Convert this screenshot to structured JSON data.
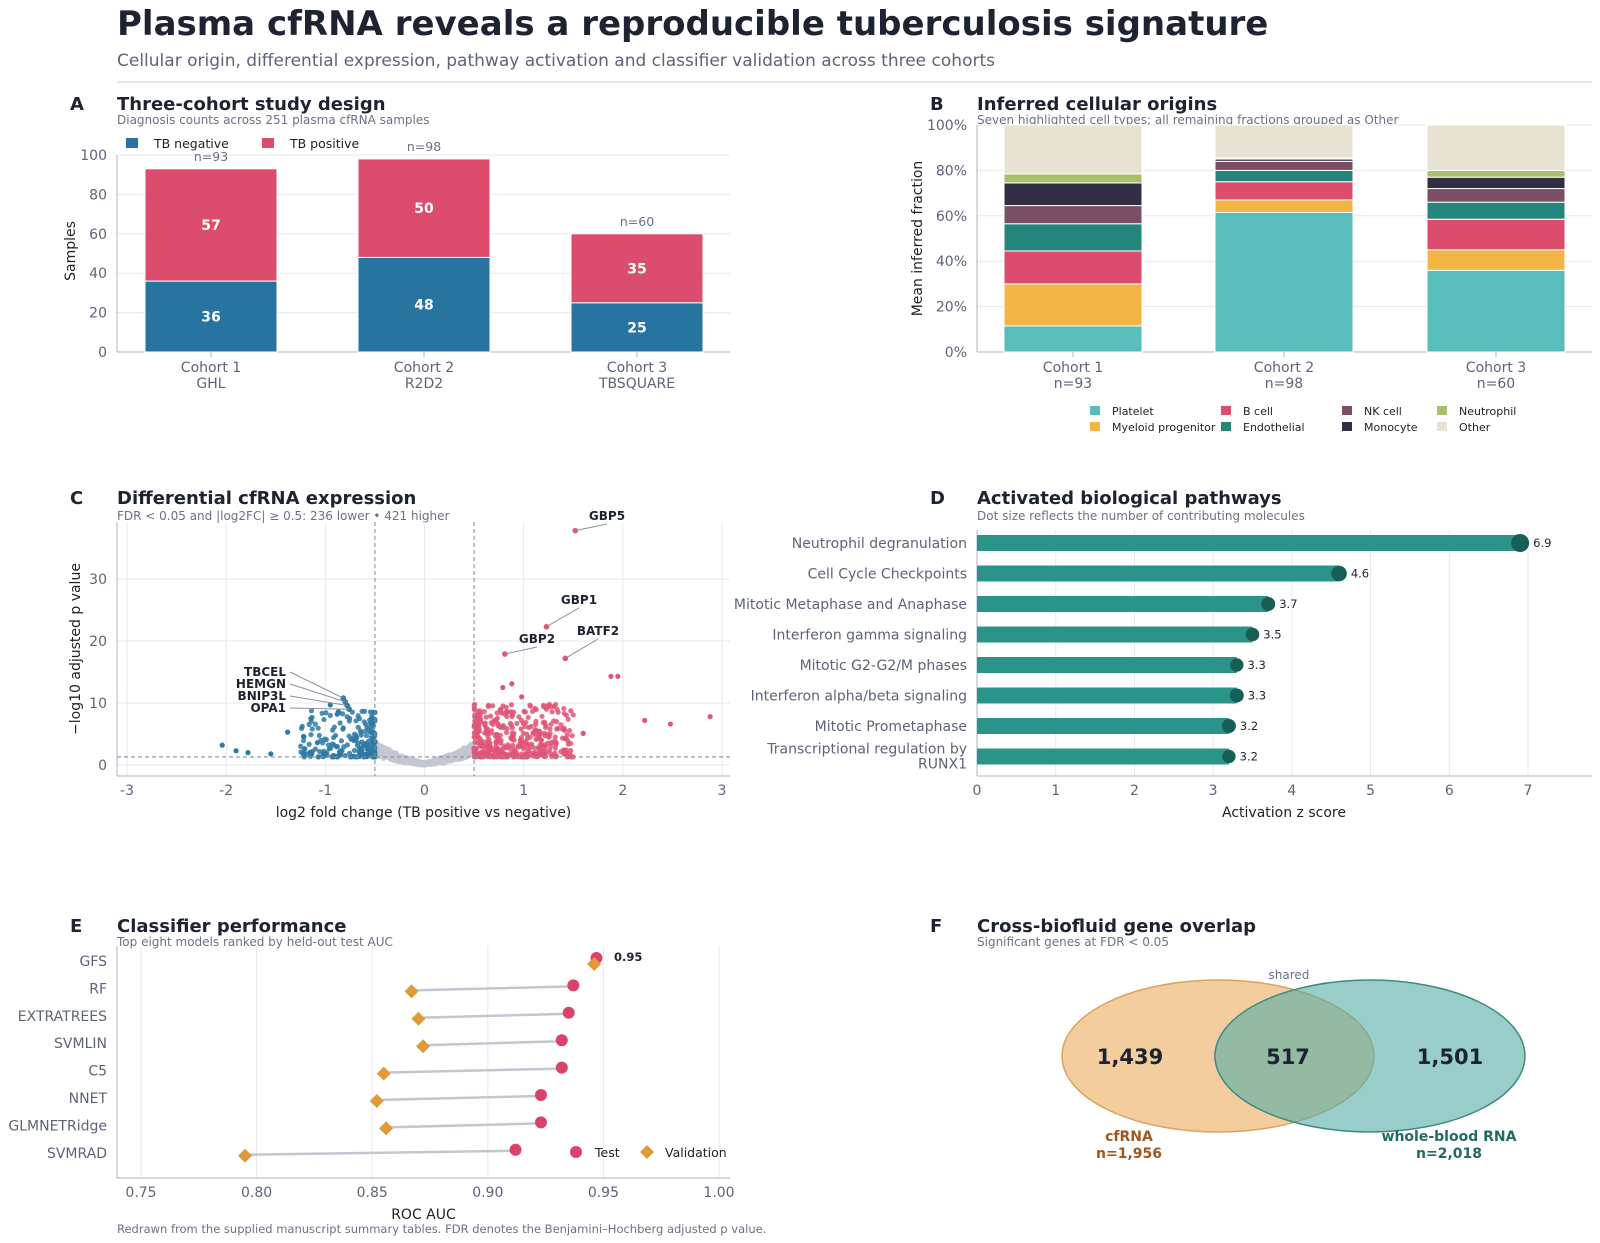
{
  "title": "Plasma cfRNA reveals a reproducible tuberculosis signature",
  "subtitle": "Cellular origin, differential expression, pathway activation and classifier validation across three cohorts",
  "footnote": "Redrawn from the supplied manuscript summary tables. FDR denotes the Benjamini–Hochberg adjusted p value.",
  "colors": {
    "tb_negative": "#2874a0",
    "tb_positive": "#dc4c6c",
    "platelet": "#59bdbb",
    "myeloid_progenitor": "#f2b445",
    "b_cell": "#dc4c6c",
    "endothelial": "#23857c",
    "nk_cell": "#7a4f66",
    "monocyte": "#322f45",
    "neutrophil": "#a8c06a",
    "other": "#e8e2d2",
    "pathway_bar": "#2a948a",
    "pathway_dot": "#175e56",
    "test": "#d9436a",
    "validation": "#e09a3a",
    "cfrna": "#f0c287",
    "whole_blood": "#5aaea8",
    "volcano_down": "#2e7aa6",
    "volcano_up": "#e15577",
    "volcano_ns": "#c2c7d0"
  },
  "panels": {
    "A": {
      "letter": "A",
      "title": "Three-cohort study design",
      "subtitle": "Diagnosis counts across 251 plasma cfRNA samples"
    },
    "B": {
      "letter": "B",
      "title": "Inferred cellular origins",
      "subtitle": "Seven highlighted cell types; all remaining fractions grouped as Other"
    },
    "C": {
      "letter": "C",
      "title": "Differential cfRNA expression",
      "subtitle": "FDR < 0.05 and |log2FC| ≥ 0.5: 236 lower • 421 higher"
    },
    "D": {
      "letter": "D",
      "title": "Activated biological pathways",
      "subtitle": "Dot size reflects the number of contributing molecules"
    },
    "E": {
      "letter": "E",
      "title": "Classifier performance",
      "subtitle": "Top eight models ranked by held-out test AUC"
    },
    "F": {
      "letter": "F",
      "title": "Cross-biofluid gene overlap",
      "subtitle": "Significant genes at FDR < 0.05"
    }
  },
  "chart_data": [
    {
      "panel": "A",
      "type": "bar",
      "stacked": true,
      "categories": [
        "Cohort 1\nGHL",
        "Cohort 2\nR2D2",
        "Cohort 3\nTBSQUARE"
      ],
      "series": [
        {
          "name": "TB negative",
          "values": [
            36,
            48,
            25
          ]
        },
        {
          "name": "TB positive",
          "values": [
            57,
            50,
            35
          ]
        }
      ],
      "totals": [
        "n=93",
        "n=98",
        "n=60"
      ],
      "ylabel": "Samples",
      "ylim": [
        0,
        100
      ],
      "yticks": [
        0,
        20,
        40,
        60,
        80,
        100
      ],
      "legend": "top-left"
    },
    {
      "panel": "B",
      "type": "bar",
      "stacked": true,
      "categories": [
        "Cohort 1\nn=93",
        "Cohort 2\nn=98",
        "Cohort 3\nn=60"
      ],
      "series": [
        {
          "name": "Platelet",
          "values": [
            0.115,
            0.615,
            0.36
          ]
        },
        {
          "name": "Myeloid progenitor",
          "values": [
            0.185,
            0.055,
            0.09
          ]
        },
        {
          "name": "B cell",
          "values": [
            0.145,
            0.08,
            0.135
          ]
        },
        {
          "name": "Endothelial",
          "values": [
            0.12,
            0.05,
            0.075
          ]
        },
        {
          "name": "NK cell",
          "values": [
            0.08,
            0.04,
            0.06
          ]
        },
        {
          "name": "Monocyte",
          "values": [
            0.1,
            0.01,
            0.05
          ]
        },
        {
          "name": "Neutrophil",
          "values": [
            0.04,
            0.005,
            0.03
          ]
        },
        {
          "name": "Other",
          "values": [
            0.215,
            0.145,
            0.2
          ]
        }
      ],
      "ylabel": "Mean inferred fraction",
      "ylim": [
        0,
        1
      ],
      "yticks": [
        "0%",
        "20%",
        "40%",
        "60%",
        "80%",
        "100%"
      ],
      "legend": "bottom"
    },
    {
      "panel": "C",
      "type": "scatter",
      "xlabel": "log2 fold change (TB positive vs negative)",
      "ylabel": "−log10 adjusted p value",
      "xlim": [
        -3.1,
        3.1
      ],
      "ylim": [
        -1.5,
        39
      ],
      "xticks": [
        -3,
        -2,
        -1,
        0,
        1,
        2,
        3
      ],
      "yticks": [
        0,
        10,
        20,
        30
      ],
      "fc_threshold": 0.5,
      "fdr_line": 1.3,
      "labeled_genes": [
        {
          "gene": "GBP5",
          "x": 1.52,
          "y": 37.8
        },
        {
          "gene": "GBP1",
          "x": 1.23,
          "y": 22.3
        },
        {
          "gene": "GBP2",
          "x": 0.81,
          "y": 17.9
        },
        {
          "gene": "BATF2",
          "x": 1.42,
          "y": 17.2
        },
        {
          "gene": "TBCEL",
          "x": -0.82,
          "y": 10.8
        },
        {
          "gene": "HEMGN",
          "x": -0.8,
          "y": 10.2
        },
        {
          "gene": "BNIP3L",
          "x": -0.78,
          "y": 9.6
        },
        {
          "gene": "OPA1",
          "x": -0.76,
          "y": 9.0
        }
      ],
      "outliers_up": [
        {
          "x": 1.88,
          "y": 14.3
        },
        {
          "x": 1.95,
          "y": 14.3
        },
        {
          "x": 2.22,
          "y": 7.2
        },
        {
          "x": 2.48,
          "y": 6.6
        },
        {
          "x": 2.88,
          "y": 7.8
        },
        {
          "x": 0.98,
          "y": 11.0
        },
        {
          "x": 0.79,
          "y": 12.5
        },
        {
          "x": 0.88,
          "y": 13.1
        },
        {
          "x": 1.6,
          "y": 5.1
        }
      ],
      "outliers_down": [
        {
          "x": -2.04,
          "y": 3.2
        },
        {
          "x": -1.9,
          "y": 2.3
        },
        {
          "x": -1.78,
          "y": 2.0
        },
        {
          "x": -1.55,
          "y": 1.8
        },
        {
          "x": -1.38,
          "y": 5.3
        },
        {
          "x": -1.22,
          "y": 4.6
        },
        {
          "x": -1.08,
          "y": 3.6
        },
        {
          "x": -0.95,
          "y": 9.7
        },
        {
          "x": -0.88,
          "y": 8.2
        }
      ]
    },
    {
      "panel": "D",
      "type": "bar",
      "orientation": "horizontal",
      "categories": [
        "Neutrophil degranulation",
        "Cell Cycle Checkpoints",
        "Mitotic Metaphase and Anaphase",
        "Interferon gamma signaling",
        "Mitotic G2-G2/M phases",
        "Interferon alpha/beta signaling",
        "Mitotic Prometaphase",
        "Transcriptional regulation by\nRUNX1"
      ],
      "values": [
        6.9,
        4.6,
        3.7,
        3.5,
        3.3,
        3.3,
        3.2,
        3.2
      ],
      "labels": [
        "6.9",
        "4.6",
        "3.7",
        "3.5",
        "3.3",
        "3.3",
        "3.2",
        "3.2"
      ],
      "dot_size": [
        1.0,
        0.75,
        0.6,
        0.55,
        0.55,
        0.6,
        0.6,
        0.55
      ],
      "xlabel": "Activation z score",
      "xlim": [
        0,
        7.8
      ],
      "xticks": [
        0,
        1,
        2,
        3,
        4,
        5,
        6,
        7
      ]
    },
    {
      "panel": "E",
      "type": "scatter",
      "style": "dumbbell",
      "categories": [
        "GFS",
        "RF",
        "EXTRATREES",
        "SVMLIN",
        "C5",
        "NNET",
        "GLMNETRidge",
        "SVMRAD"
      ],
      "series": [
        {
          "name": "Test",
          "values": [
            0.947,
            0.937,
            0.935,
            0.932,
            0.932,
            0.923,
            0.923,
            0.912
          ]
        },
        {
          "name": "Validation",
          "values": [
            0.946,
            0.867,
            0.87,
            0.872,
            0.855,
            0.852,
            0.856,
            0.795
          ]
        }
      ],
      "top_label": "0.95",
      "xlabel": "ROC AUC",
      "xlim": [
        0.74,
        1.005
      ],
      "xticks": [
        "0.75",
        "0.80",
        "0.85",
        "0.90",
        "0.95",
        "1.00"
      ],
      "legend": "bottom-right"
    },
    {
      "panel": "F",
      "type": "venn",
      "sets": [
        {
          "name": "cfRNA",
          "size_label": "n=1,956",
          "unique": "1,439"
        },
        {
          "name": "whole-blood RNA",
          "size_label": "n=2,018",
          "unique": "1,501"
        }
      ],
      "shared": "517",
      "shared_label": "shared"
    }
  ]
}
